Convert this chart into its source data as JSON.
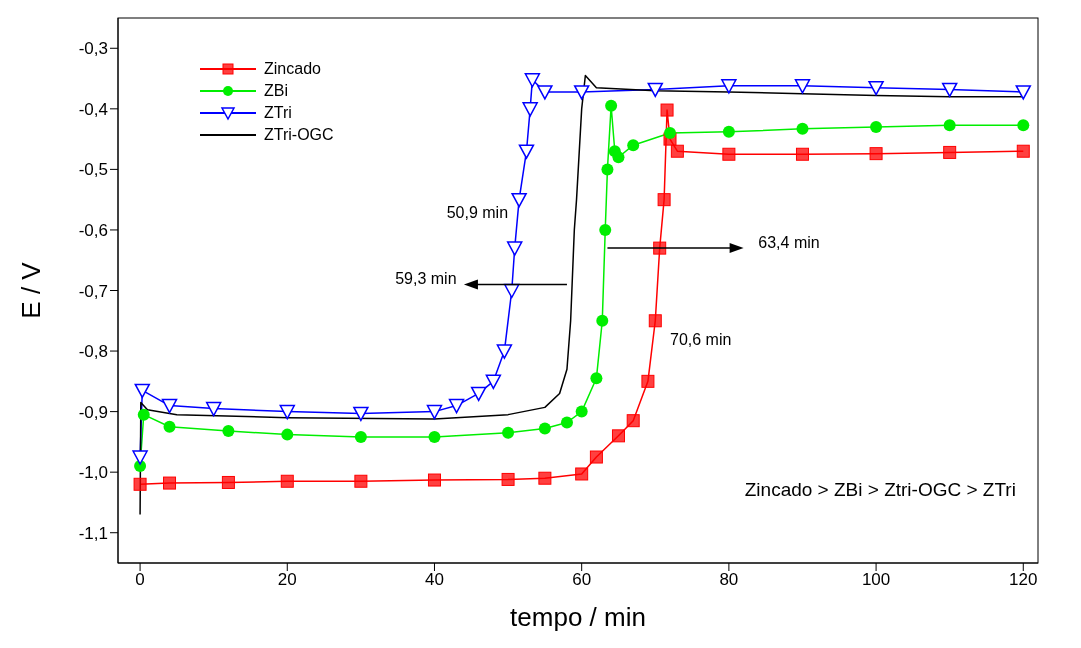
{
  "chart_data": {
    "type": "line",
    "xlabel": "tempo / min",
    "ylabel": "E / V",
    "xlim": [
      -3,
      122
    ],
    "ylim": [
      -1.15,
      -0.25
    ],
    "xticks": [
      0,
      20,
      40,
      60,
      80,
      100,
      120
    ],
    "yticks": [
      {
        "value": -1.1,
        "label": "-1,1"
      },
      {
        "value": -1.0,
        "label": "-1,0"
      },
      {
        "value": -0.9,
        "label": "-0,9"
      },
      {
        "value": -0.8,
        "label": "-0,8"
      },
      {
        "value": -0.7,
        "label": "-0,7"
      },
      {
        "value": -0.6,
        "label": "-0,6"
      },
      {
        "value": -0.5,
        "label": "-0,5"
      },
      {
        "value": -0.4,
        "label": "-0,4"
      },
      {
        "value": -0.3,
        "label": "-0,3"
      }
    ],
    "grid": false,
    "legend": "top left",
    "line_style": "solid",
    "series": [
      {
        "name": "Zincado",
        "color": "#ff0000",
        "marker": "square",
        "x": [
          0,
          4,
          12,
          20,
          30,
          40,
          50,
          55,
          60,
          62,
          65,
          67,
          69,
          70,
          70.6,
          71.2,
          71.6,
          72,
          73,
          80,
          90,
          100,
          110,
          120
        ],
        "values": [
          -1.02,
          -1.018,
          -1.017,
          -1.015,
          -1.015,
          -1.013,
          -1.012,
          -1.01,
          -1.003,
          -0.975,
          -0.94,
          -0.915,
          -0.85,
          -0.75,
          -0.63,
          -0.55,
          -0.402,
          -0.45,
          -0.47,
          -0.475,
          -0.475,
          -0.474,
          -0.472,
          -0.47
        ]
      },
      {
        "name": "ZBi",
        "color": "#00ee00",
        "marker": "circle",
        "x": [
          0,
          0.5,
          4,
          12,
          20,
          30,
          40,
          50,
          55,
          58,
          60,
          62,
          62.8,
          63.2,
          63.5,
          64,
          64.5,
          65,
          67,
          72,
          80,
          90,
          100,
          110,
          120
        ],
        "values": [
          -0.99,
          -0.905,
          -0.925,
          -0.932,
          -0.938,
          -0.942,
          -0.942,
          -0.935,
          -0.928,
          -0.918,
          -0.9,
          -0.845,
          -0.75,
          -0.6,
          -0.5,
          -0.395,
          -0.47,
          -0.48,
          -0.46,
          -0.44,
          -0.438,
          -0.433,
          -0.43,
          -0.427,
          -0.427
        ]
      },
      {
        "name": "ZTri",
        "color": "#0000ff",
        "marker": "triangle",
        "x": [
          0,
          0.3,
          4,
          10,
          20,
          30,
          40,
          43,
          46,
          48,
          49.5,
          50.5,
          50.9,
          51.5,
          52.5,
          53,
          53.3,
          55,
          60,
          70,
          80,
          90,
          100,
          110,
          120
        ],
        "values": [
          -0.975,
          -0.865,
          -0.89,
          -0.895,
          -0.9,
          -0.903,
          -0.9,
          -0.89,
          -0.87,
          -0.85,
          -0.8,
          -0.7,
          -0.63,
          -0.55,
          -0.47,
          -0.4,
          -0.352,
          -0.372,
          -0.372,
          -0.368,
          -0.362,
          -0.362,
          -0.365,
          -0.368,
          -0.372
        ]
      },
      {
        "name": "ZTri-OGC",
        "color": "#000000",
        "marker": "none",
        "x": [
          0,
          0.1,
          1,
          5,
          20,
          40,
          50,
          55,
          57,
          58,
          58.5,
          59,
          59.3,
          60,
          60.5,
          62,
          70,
          80,
          90,
          100,
          110,
          120
        ],
        "values": [
          -1.07,
          -0.885,
          -0.897,
          -0.905,
          -0.91,
          -0.912,
          -0.905,
          -0.893,
          -0.87,
          -0.83,
          -0.75,
          -0.6,
          -0.55,
          -0.4,
          -0.345,
          -0.365,
          -0.37,
          -0.372,
          -0.375,
          -0.378,
          -0.38,
          -0.38
        ]
      }
    ],
    "annotations": [
      "50,9 min",
      "59,3 min",
      "63,4 min",
      "70,6 min",
      "Zincado > ZBi > Ztri-OGC > ZTri"
    ]
  }
}
